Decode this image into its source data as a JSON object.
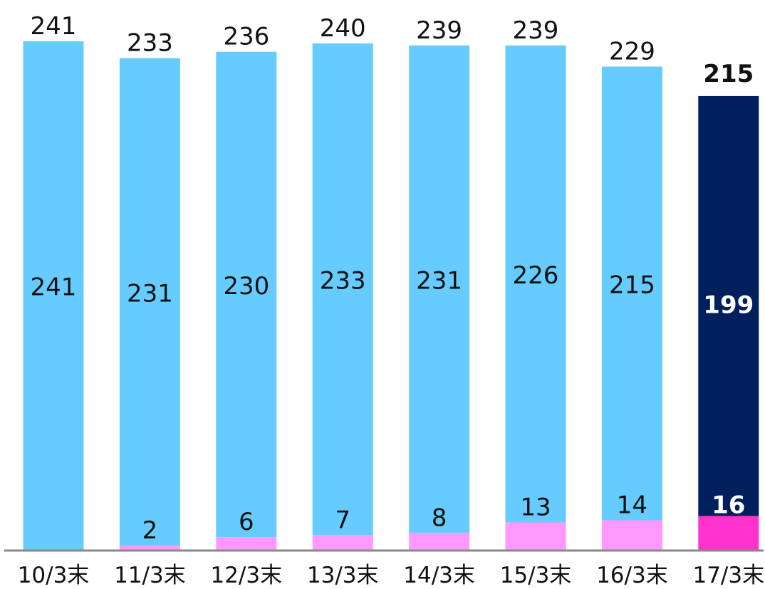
{
  "chart_data": {
    "type": "bar",
    "stacked": true,
    "categories": [
      "10/3末",
      "11/3末",
      "12/3末",
      "13/3末",
      "14/3末",
      "15/3末",
      "16/3末",
      "17/3末"
    ],
    "series": [
      {
        "values": [
          0,
          2,
          6,
          7,
          8,
          13,
          14,
          16
        ]
      },
      {
        "values": [
          241,
          231,
          230,
          233,
          231,
          226,
          215,
          199
        ]
      }
    ],
    "totals": [
      241,
      233,
      236,
      240,
      239,
      239,
      229,
      215
    ],
    "segment_labels": [
      [
        "",
        "2",
        "6",
        "7",
        "8",
        "13",
        "14",
        "16"
      ],
      [
        "241",
        "231",
        "230",
        "233",
        "231",
        "226",
        "215",
        "199"
      ]
    ],
    "total_labels": [
      "241",
      "233",
      "236",
      "240",
      "239",
      "239",
      "229",
      "215"
    ],
    "highlight_index": 7,
    "colors": {
      "series_bottom": "#ff99ff",
      "series_top": "#66ccff",
      "highlight_bottom": "#ff33cc",
      "highlight_top": "#001f5c",
      "axis": "#888888"
    },
    "ylim": [
      0,
      245
    ],
    "grid": false,
    "legend": "none"
  }
}
